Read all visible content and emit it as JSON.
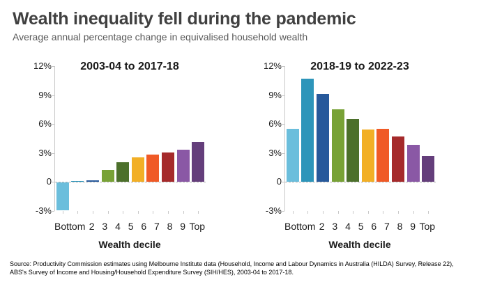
{
  "header": {
    "title": "Wealth inequality fell during the pandemic",
    "subtitle": "Average annual percentage change in equivalised household wealth"
  },
  "palette": [
    "#6BBEDC",
    "#2D95BA",
    "#27599B",
    "#78A236",
    "#4C702B",
    "#F2AF26",
    "#F05A26",
    "#A52A2B",
    "#8A58A5",
    "#643E7B"
  ],
  "axis": {
    "ylim": [
      -3,
      12
    ],
    "yticks": [
      {
        "value": 12,
        "label": "12%"
      },
      {
        "value": 9,
        "label": "9%"
      },
      {
        "value": 6,
        "label": "6%"
      },
      {
        "value": 3,
        "label": "3%"
      },
      {
        "value": 0,
        "label": "0"
      },
      {
        "value": -3,
        "label": "-3%"
      }
    ]
  },
  "chart_data": [
    {
      "type": "bar",
      "title": "2003-04 to 2017-18",
      "xlabel": "Wealth decile",
      "ylabel": "",
      "categories": [
        "Bottom",
        "2",
        "3",
        "4",
        "5",
        "6",
        "7",
        "8",
        "9",
        "Top"
      ],
      "values": [
        -2.9,
        0.05,
        0.15,
        1.2,
        2.0,
        2.5,
        2.8,
        3.0,
        3.3,
        4.1
      ],
      "ylim": [
        -3,
        12
      ],
      "grid": false,
      "zero_line": "dashed",
      "legend": "none"
    },
    {
      "type": "bar",
      "title": "2018-19 to 2022-23",
      "xlabel": "Wealth decile",
      "ylabel": "",
      "categories": [
        "Bottom",
        "2",
        "3",
        "4",
        "5",
        "6",
        "7",
        "8",
        "9",
        "Top"
      ],
      "values": [
        5.5,
        10.7,
        9.1,
        7.5,
        6.5,
        5.4,
        5.5,
        4.7,
        3.8,
        2.7
      ],
      "ylim": [
        -3,
        12
      ],
      "grid": false,
      "zero_line": "dashed",
      "legend": "none"
    }
  ],
  "footer": {
    "source_lines": [
      "Source: Productivity Commission estimates using Melbourne Institute data (Household, Income and Labour Dynamics in Australia (HILDA) Survey, Release 22),",
      "ABS's Survey of Income and Housing/Household Expenditure Survey (SIH/HES), 2003-04 to 2017-18."
    ]
  }
}
